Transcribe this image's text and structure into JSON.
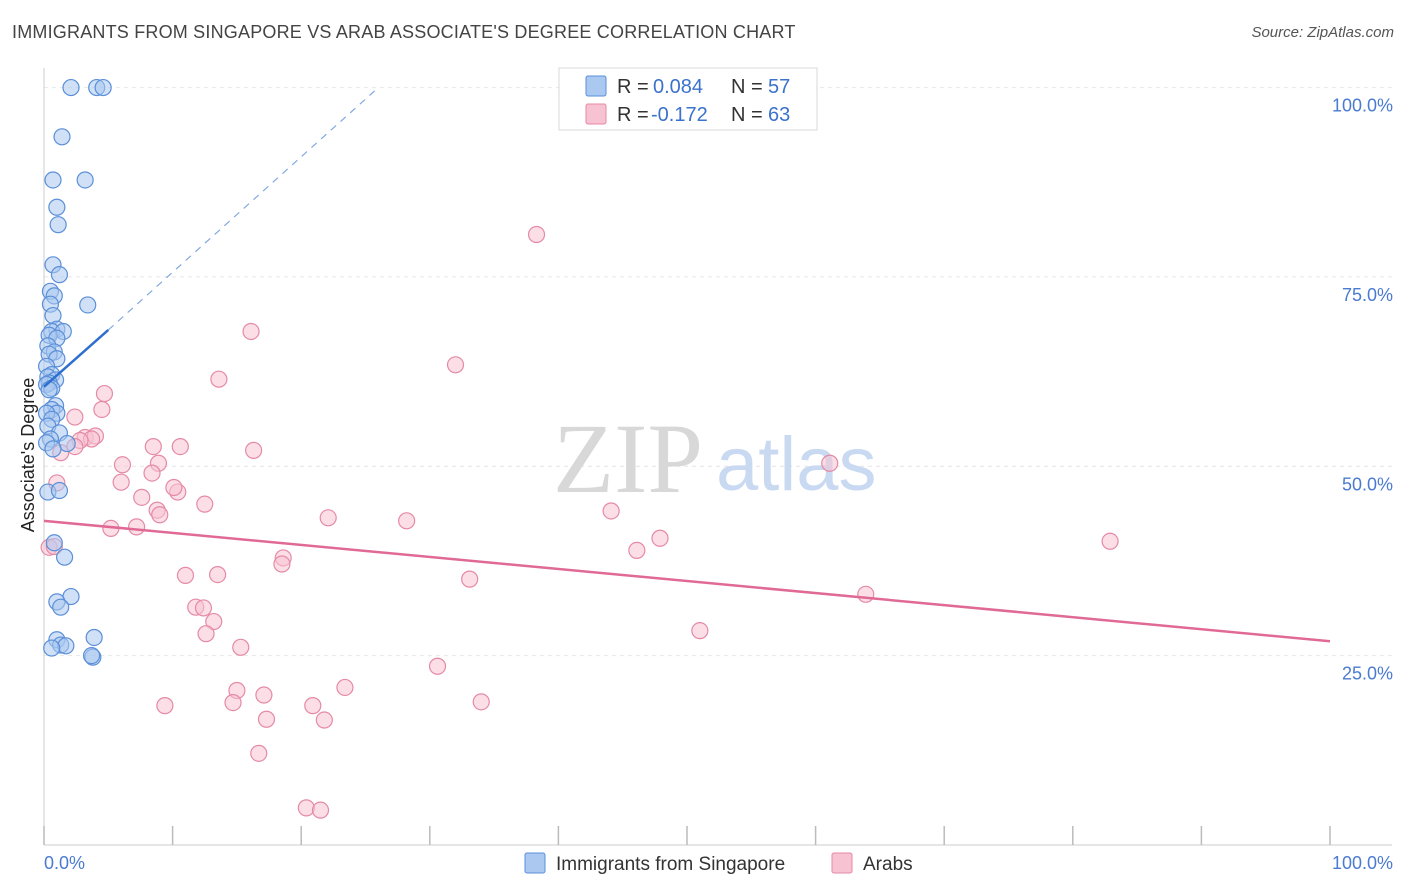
{
  "header": {
    "title": "IMMIGRANTS FROM SINGAPORE VS ARAB ASSOCIATE'S DEGREE CORRELATION CHART",
    "source": "Source: ZipAtlas.com"
  },
  "watermark": {
    "zip": "ZIP",
    "atlas": "atlas"
  },
  "colors": {
    "blue_fill": "#aac8f0",
    "blue_stroke": "#5b8fd8",
    "blue_line": "#2f6fcf",
    "pink_fill": "#f7c2d2",
    "pink_stroke": "#e58aa6",
    "pink_line": "#e06a95",
    "grid": "#e6e6e6",
    "tick_text": "#4a7bd0"
  },
  "legend": {
    "series": [
      {
        "r_label": "R =",
        "r_value": "0.084",
        "n_label": "N =",
        "n_value": "57"
      },
      {
        "r_label": "R =",
        "r_value": "-0.172",
        "n_label": "N =",
        "n_value": "63"
      }
    ]
  },
  "chart_data": {
    "type": "scatter",
    "title": "IMMIGRANTS FROM SINGAPORE VS ARAB ASSOCIATE'S DEGREE CORRELATION CHART",
    "xlabel": "",
    "ylabel": "Associate's Degree",
    "xlim": [
      0,
      100
    ],
    "ylim": [
      0,
      101
    ],
    "x_tick_labels": [
      "0.0%",
      "100.0%"
    ],
    "y_ticks": [
      {
        "value": 25,
        "label": "25.0%"
      },
      {
        "value": 50,
        "label": "50.0%"
      },
      {
        "value": 75,
        "label": "75.0%"
      },
      {
        "value": 100,
        "label": "100.0%"
      }
    ],
    "grid": true,
    "legend_position": "top-center",
    "series": [
      {
        "name": "Immigrants from Singapore",
        "color": "blue",
        "r": 0.084,
        "n": 57,
        "trend": {
          "x_start": 0,
          "y_start": 60.5,
          "x_solid_end": 5,
          "y_solid_end": 68,
          "x_dash_end": 26,
          "y_dash_end": 100
        },
        "points": [
          [
            2.1,
            100
          ],
          [
            4.1,
            100
          ],
          [
            4.6,
            100
          ],
          [
            1.4,
            93.5
          ],
          [
            0.7,
            87.8
          ],
          [
            3.2,
            87.8
          ],
          [
            1.0,
            84.2
          ],
          [
            1.1,
            81.9
          ],
          [
            0.7,
            76.6
          ],
          [
            1.2,
            75.3
          ],
          [
            0.5,
            73.1
          ],
          [
            0.8,
            72.5
          ],
          [
            0.5,
            71.4
          ],
          [
            3.4,
            71.3
          ],
          [
            0.7,
            69.9
          ],
          [
            1.0,
            68.1
          ],
          [
            0.6,
            67.8
          ],
          [
            1.5,
            67.8
          ],
          [
            0.4,
            67.3
          ],
          [
            1.0,
            66.9
          ],
          [
            0.3,
            65.9
          ],
          [
            0.8,
            65.1
          ],
          [
            0.4,
            64.8
          ],
          [
            1.0,
            64.2
          ],
          [
            0.2,
            63.2
          ],
          [
            0.6,
            62.1
          ],
          [
            0.3,
            61.8
          ],
          [
            0.9,
            61.4
          ],
          [
            0.4,
            61.0
          ],
          [
            0.2,
            60.8
          ],
          [
            0.6,
            60.3
          ],
          [
            0.4,
            60.1
          ],
          [
            0.9,
            58.0
          ],
          [
            0.6,
            57.5
          ],
          [
            1.0,
            57.0
          ],
          [
            0.2,
            57.0
          ],
          [
            0.6,
            56.2
          ],
          [
            0.3,
            55.3
          ],
          [
            1.2,
            54.4
          ],
          [
            0.5,
            53.6
          ],
          [
            1.8,
            53.0
          ],
          [
            0.2,
            53.1
          ],
          [
            0.7,
            52.3
          ],
          [
            0.3,
            46.6
          ],
          [
            1.2,
            46.8
          ],
          [
            0.8,
            39.9
          ],
          [
            1.6,
            38.0
          ],
          [
            2.1,
            32.8
          ],
          [
            1.0,
            32.1
          ],
          [
            1.3,
            31.4
          ],
          [
            3.9,
            27.4
          ],
          [
            1.0,
            27.1
          ],
          [
            1.3,
            26.4
          ],
          [
            1.7,
            26.3
          ],
          [
            0.6,
            26.0
          ],
          [
            3.8,
            24.8
          ],
          [
            3.7,
            25.0
          ]
        ]
      },
      {
        "name": "Arabs",
        "color": "pink",
        "r": -0.172,
        "n": 63,
        "trend": {
          "x_start": 0,
          "y_start": 42.8,
          "x_end": 100,
          "y_end": 26.9
        },
        "points": [
          [
            38.3,
            80.6
          ],
          [
            16.1,
            67.8
          ],
          [
            32.0,
            63.4
          ],
          [
            13.6,
            61.5
          ],
          [
            4.7,
            59.6
          ],
          [
            4.5,
            57.5
          ],
          [
            2.4,
            56.5
          ],
          [
            3.2,
            53.8
          ],
          [
            4.0,
            54.0
          ],
          [
            3.7,
            53.6
          ],
          [
            2.8,
            53.4
          ],
          [
            2.4,
            52.6
          ],
          [
            8.5,
            52.6
          ],
          [
            10.6,
            52.6
          ],
          [
            16.3,
            52.1
          ],
          [
            1.3,
            51.8
          ],
          [
            6.1,
            50.2
          ],
          [
            8.9,
            50.4
          ],
          [
            61.1,
            50.4
          ],
          [
            8.4,
            49.1
          ],
          [
            10.4,
            46.6
          ],
          [
            10.1,
            47.2
          ],
          [
            6.0,
            47.9
          ],
          [
            7.6,
            45.9
          ],
          [
            12.5,
            45.0
          ],
          [
            8.8,
            44.2
          ],
          [
            9.0,
            43.6
          ],
          [
            22.1,
            43.2
          ],
          [
            28.2,
            42.8
          ],
          [
            44.1,
            44.1
          ],
          [
            5.2,
            41.8
          ],
          [
            7.2,
            42.0
          ],
          [
            18.6,
            37.9
          ],
          [
            46.1,
            38.9
          ],
          [
            47.9,
            40.5
          ],
          [
            82.9,
            40.1
          ],
          [
            18.5,
            37.1
          ],
          [
            11.0,
            35.6
          ],
          [
            13.5,
            35.7
          ],
          [
            33.1,
            35.1
          ],
          [
            11.8,
            31.4
          ],
          [
            12.4,
            31.3
          ],
          [
            13.2,
            29.5
          ],
          [
            12.6,
            27.9
          ],
          [
            51.0,
            28.3
          ],
          [
            15.3,
            26.1
          ],
          [
            30.6,
            23.6
          ],
          [
            15.0,
            20.4
          ],
          [
            17.1,
            19.8
          ],
          [
            23.4,
            20.8
          ],
          [
            9.4,
            18.4
          ],
          [
            14.7,
            18.8
          ],
          [
            20.9,
            18.4
          ],
          [
            34.0,
            18.9
          ],
          [
            17.3,
            16.6
          ],
          [
            21.8,
            16.5
          ],
          [
            16.7,
            12.1
          ],
          [
            20.4,
            4.9
          ],
          [
            21.5,
            4.6
          ],
          [
            63.9,
            33.1
          ],
          [
            1.0,
            47.8
          ],
          [
            0.4,
            39.3
          ],
          [
            0.8,
            39.4
          ]
        ]
      }
    ]
  },
  "bottom_legend": {
    "items": [
      {
        "label": "Immigrants from Singapore"
      },
      {
        "label": "Arabs"
      }
    ]
  }
}
